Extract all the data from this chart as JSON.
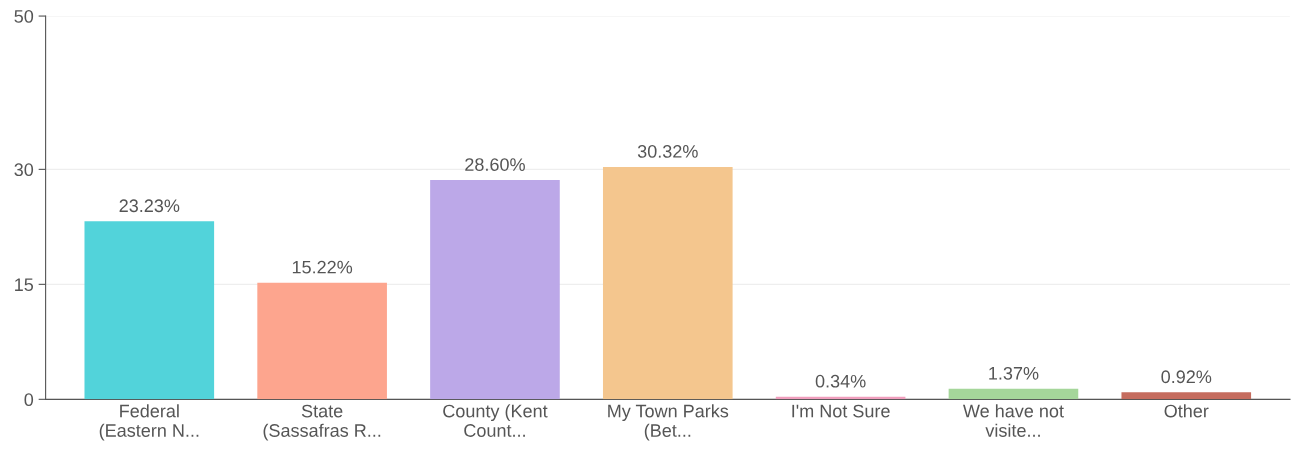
{
  "chart_data": {
    "type": "bar",
    "categories": [
      "Federal\n(Eastern N...",
      "State\n(Sassafras R...",
      "County (Kent\nCount...",
      "My Town Parks\n(Bet...",
      "I'm Not Sure",
      "We have not\nvisite...",
      "Other"
    ],
    "values": [
      23.23,
      15.22,
      28.6,
      30.32,
      0.34,
      1.37,
      0.92
    ],
    "value_labels": [
      "23.23%",
      "15.22%",
      "28.60%",
      "30.32%",
      "0.34%",
      "1.37%",
      "0.92%"
    ],
    "colors": [
      "#52d3da",
      "#fda58e",
      "#bca8e8",
      "#f4c68e",
      "#f09ebd",
      "#a5d69a",
      "#c56c5e"
    ],
    "ylim": [
      0,
      50
    ],
    "yticks": [
      0,
      15,
      30,
      50
    ],
    "grid": "y"
  }
}
